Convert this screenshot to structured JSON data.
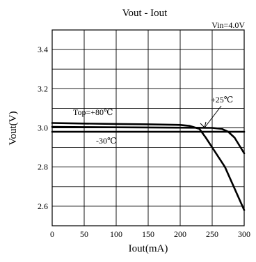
{
  "chart_data": {
    "type": "line",
    "title": "Vout - Iout",
    "condition": "Vin=4.0V",
    "xlabel": "Iout(mA)",
    "ylabel": "Vout(V)",
    "xlim": [
      0,
      300
    ],
    "ylim": [
      2.5,
      3.5
    ],
    "x_ticks": [
      0,
      50,
      100,
      150,
      200,
      250,
      300
    ],
    "y_ticks": [
      2.6,
      2.8,
      3.0,
      3.2,
      3.4
    ],
    "y_tick_labels": [
      "2.6",
      "2.8",
      "3.0",
      "3.2",
      "3.4"
    ],
    "grid": true,
    "series": [
      {
        "name": "Top=+80℃",
        "x": [
          0,
          50,
          100,
          150,
          200,
          215,
          230,
          240,
          250,
          270,
          300
        ],
        "y": [
          3.025,
          3.022,
          3.02,
          3.018,
          3.015,
          3.01,
          2.995,
          2.95,
          2.9,
          2.8,
          2.58
        ]
      },
      {
        "name": "+25℃",
        "x": [
          0,
          50,
          100,
          150,
          200,
          250,
          265,
          275,
          285,
          300
        ],
        "y": [
          3.005,
          3.004,
          3.003,
          3.002,
          3.001,
          3.0,
          2.995,
          2.98,
          2.95,
          2.87
        ]
      },
      {
        "name": "-30℃",
        "x": [
          0,
          50,
          100,
          150,
          200,
          250,
          300
        ],
        "y": [
          2.98,
          2.98,
          2.98,
          2.98,
          2.98,
          2.98,
          2.98
        ]
      }
    ],
    "annotations": [
      "Top=+80℃",
      "+25℃",
      "-30℃"
    ]
  }
}
